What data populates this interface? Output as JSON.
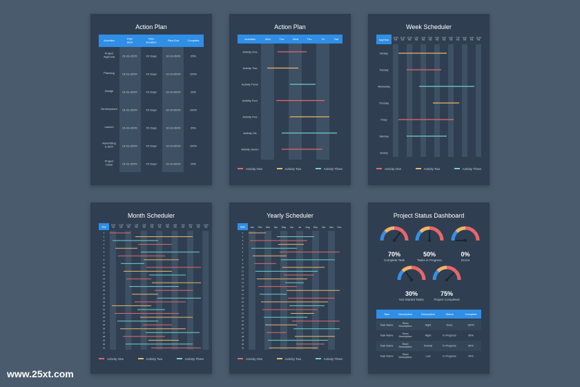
{
  "watermark": "www.25xt.com",
  "action_plan_table": {
    "title": "Action Plan",
    "headers": [
      "Activities",
      "Plan Start",
      "Plan Duration",
      "Plan End",
      "Complete"
    ],
    "rows": [
      [
        "Project Approval",
        "01-01-20XX",
        "XX Days",
        "10-10-20XX",
        "25%"
      ],
      [
        "Planning",
        "01-01-20XX",
        "XX Days",
        "10-10-20XX",
        "100%"
      ],
      [
        "Design",
        "01-01-20XX",
        "XX Days",
        "10-10-20XX",
        "25%"
      ],
      [
        "Development",
        "01-01-20XX",
        "XX Days",
        "10-10-20XX",
        "100%"
      ],
      [
        "Launch",
        "01-01-20XX",
        "XX Days",
        "10-10-20XX",
        "25%"
      ],
      [
        "Advertising & SEO",
        "01-01-20XX",
        "XX Days",
        "10-10-20XX",
        "100%"
      ],
      [
        "Project Close",
        "01-01-20XX",
        "XX Days",
        "10-10-20XX",
        "25%"
      ]
    ]
  },
  "action_plan_gantt": {
    "title": "Action Plan",
    "headers": [
      "Activities",
      "Mon",
      "Tue",
      "Wed",
      "Thu",
      "Fri",
      "Sat"
    ],
    "rows": [
      "Activity One",
      "Activity Two",
      "Activity Three",
      "Activity Four",
      "Activity Five",
      "Activity Six",
      "Activity Seven"
    ],
    "legend": [
      "Activity One",
      "Activity Two",
      "Activity Three"
    ]
  },
  "week_scheduler": {
    "title": "Week Scheduler",
    "corner": "Day/Time",
    "times": [
      "10:00 AM",
      "11:00 AM",
      "12:00 PM",
      "1:00 PM",
      "2:00 PM",
      "3:00 PM",
      "4:00 PM",
      "5:00 PM",
      "6:00 PM",
      "7:00 PM",
      "8:00 PM",
      "9:00 PM",
      "10:00 PM"
    ],
    "days": [
      "Monday",
      "Tuesday",
      "Wednesday",
      "Thursday",
      "Friday",
      "Saturday",
      "Sunday"
    ],
    "legend": [
      "Activity One",
      "Activity Two",
      "Activity Three"
    ]
  },
  "month_scheduler": {
    "title": "Month Scheduler",
    "corner": "Day",
    "times": [
      "10:00 AM",
      "11:00 AM",
      "12:00 PM",
      "1:00 PM",
      "2:00 PM",
      "3:00 PM",
      "4:00 PM",
      "5:00 PM",
      "6:00 PM",
      "7:00 PM",
      "8:00 PM",
      "9:00 PM",
      "10:00 PM"
    ],
    "days": [
      "1",
      "2",
      "3",
      "4",
      "5",
      "6",
      "7",
      "8",
      "9",
      "10",
      "11",
      "12",
      "13",
      "14",
      "15",
      "16",
      "17",
      "18",
      "19",
      "20",
      "21",
      "22",
      "23",
      "24",
      "25",
      "26",
      "27",
      "28",
      "29",
      "30",
      "31"
    ],
    "legend": [
      "Activity One",
      "Activity Two",
      "Activity Three"
    ]
  },
  "yearly_scheduler": {
    "title": "Yearly Scheduler",
    "corner": "Date",
    "months": [
      "Jan",
      "Feb",
      "Mar",
      "Apr",
      "May",
      "Jun",
      "Jul",
      "Aug",
      "Sep",
      "Oct",
      "Nov",
      "Dec"
    ],
    "days": [
      "1",
      "2",
      "3",
      "4",
      "5",
      "6",
      "7",
      "8",
      "9",
      "10",
      "11",
      "12",
      "13",
      "14",
      "15",
      "16",
      "17",
      "18",
      "19",
      "20",
      "21",
      "22",
      "23",
      "24",
      "25",
      "26",
      "27",
      "28",
      "29",
      "30",
      "31"
    ],
    "legend": [
      "Activity One",
      "Activity Two",
      "Activity Three"
    ]
  },
  "dashboard": {
    "title": "Project Status Dashboard",
    "gauges": [
      {
        "value": "70%",
        "label": "Complete Task",
        "level": 0.7
      },
      {
        "value": "50%",
        "label": "Tasks in Progress",
        "level": 0.5
      },
      {
        "value": "0%",
        "label": "Errors",
        "level": 0.0
      },
      {
        "value": "30%",
        "label": "Not Started Tasks",
        "level": 0.3
      },
      {
        "value": "75%",
        "label": "Project Completed",
        "level": 0.75
      }
    ],
    "table_headers": [
      "Task",
      "Description",
      "Description",
      "Status",
      "Complete"
    ],
    "table_rows": [
      [
        "Task Name",
        "Short Description",
        "Hight",
        "Done",
        "100%"
      ],
      [
        "Task Name",
        "Short Description",
        "Hight",
        "In Progress",
        "60%"
      ],
      [
        "Task Name",
        "Short Description",
        "Normal",
        "In Progress",
        "80%"
      ],
      [
        "Task Name",
        "Short Description",
        "Low",
        "In Progress",
        "40%"
      ]
    ]
  },
  "colors": {
    "card": "#2f3f51",
    "header": "#2f8ee5",
    "band": "#3e5063",
    "red": "#e8676b",
    "orange": "#f1b56a",
    "teal": "#6fd0cf"
  }
}
